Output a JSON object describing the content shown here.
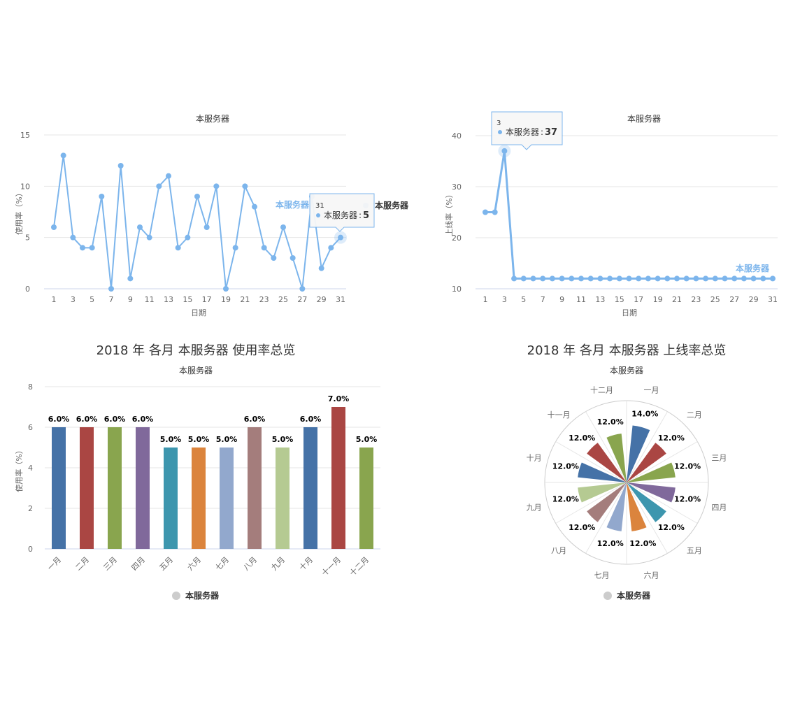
{
  "chart_data": [
    {
      "type": "line",
      "subtitle": "本服务器",
      "xlabel": "日期",
      "ylabel": "使用率（%）",
      "x": [
        1,
        2,
        3,
        4,
        5,
        6,
        7,
        8,
        9,
        10,
        11,
        12,
        13,
        14,
        15,
        16,
        17,
        18,
        19,
        20,
        21,
        22,
        23,
        24,
        25,
        26,
        27,
        28,
        29,
        30,
        31
      ],
      "x_ticks": [
        "1",
        "3",
        "5",
        "7",
        "9",
        "11",
        "13",
        "15",
        "17",
        "19",
        "21",
        "23",
        "25",
        "27",
        "29",
        "31"
      ],
      "ylim": [
        0,
        15
      ],
      "y_ticks": [
        "0",
        "5",
        "10",
        "15"
      ],
      "series": [
        {
          "name": "本服务器",
          "color": "#7cb5ec",
          "values": [
            6,
            13,
            5,
            4,
            4,
            9,
            0,
            12,
            1,
            6,
            5,
            10,
            11,
            4,
            5,
            9,
            6,
            10,
            0,
            4,
            10,
            8,
            4,
            3,
            6,
            3,
            0,
            9,
            2,
            4,
            5
          ]
        }
      ],
      "legend_label": "本服务器",
      "series_label": "本服务器",
      "tooltip": {
        "header": "31",
        "series": "本服务器",
        "value": "5"
      }
    },
    {
      "type": "line",
      "subtitle": "本服务器",
      "xlabel": "日期",
      "ylabel": "上线率（%）",
      "x": [
        1,
        2,
        3,
        4,
        5,
        6,
        7,
        8,
        9,
        10,
        11,
        12,
        13,
        14,
        15,
        16,
        17,
        18,
        19,
        20,
        21,
        22,
        23,
        24,
        25,
        26,
        27,
        28,
        29,
        30,
        31
      ],
      "x_ticks": [
        "1",
        "3",
        "5",
        "7",
        "9",
        "11",
        "13",
        "15",
        "17",
        "19",
        "21",
        "23",
        "25",
        "27",
        "29",
        "31"
      ],
      "ylim": [
        10,
        40
      ],
      "y_ticks": [
        "10",
        "20",
        "30",
        "40"
      ],
      "series": [
        {
          "name": "本服务器",
          "color": "#7cb5ec",
          "values": [
            25,
            25,
            37,
            12,
            12,
            12,
            12,
            12,
            12,
            12,
            12,
            12,
            12,
            12,
            12,
            12,
            12,
            12,
            12,
            12,
            12,
            12,
            12,
            12,
            12,
            12,
            12,
            12,
            12,
            12,
            12
          ]
        }
      ],
      "series_label": "本服务器",
      "tooltip": {
        "header": "3",
        "series": "本服务器",
        "value": "37"
      }
    },
    {
      "type": "bar",
      "title": "2018 年 各月 本服务器 使用率总览",
      "subtitle": "本服务器",
      "ylabel": "使用率（%）",
      "categories": [
        "一月",
        "二月",
        "三月",
        "四月",
        "五月",
        "六月",
        "七月",
        "八月",
        "九月",
        "十月",
        "十一月",
        "十二月"
      ],
      "values": [
        6,
        6,
        6,
        6,
        5,
        5,
        5,
        6,
        5,
        6,
        7,
        5
      ],
      "data_labels": [
        "6.0%",
        "6.0%",
        "6.0%",
        "6.0%",
        "5.0%",
        "5.0%",
        "5.0%",
        "6.0%",
        "5.0%",
        "6.0%",
        "7.0%",
        "5.0%"
      ],
      "colors": [
        "#4572a7",
        "#aa4643",
        "#89a54e",
        "#80699b",
        "#3d96ae",
        "#db843d",
        "#92a8cd",
        "#a47d7c",
        "#b5ca92",
        "#4572a7",
        "#aa4643",
        "#89a54e"
      ],
      "ylim": [
        0,
        8
      ],
      "y_ticks": [
        "0",
        "2",
        "4",
        "6",
        "8"
      ],
      "legend": "本服务器",
      "legend_placement": "bottom-center"
    },
    {
      "type": "polar-column",
      "title": "2018 年 各月 本服务器 上线率总览",
      "subtitle": "本服务器",
      "categories": [
        "一月",
        "二月",
        "三月",
        "四月",
        "五月",
        "六月",
        "七月",
        "八月",
        "九月",
        "十月",
        "十一月",
        "十二月"
      ],
      "values": [
        14,
        12,
        12,
        12,
        12,
        12,
        12,
        12,
        12,
        12,
        12,
        12
      ],
      "data_labels": [
        "14.0%",
        "12.0%",
        "12.0%",
        "12.0%",
        "12.0%",
        "12.0%",
        "12.0%",
        "12.0%",
        "12.0%",
        "12.0%",
        "12.0%",
        "12.0%"
      ],
      "colors": [
        "#4572a7",
        "#aa4643",
        "#89a54e",
        "#80699b",
        "#3d96ae",
        "#db843d",
        "#92a8cd",
        "#a47d7c",
        "#b5ca92",
        "#4572a7",
        "#aa4643",
        "#89a54e"
      ],
      "ylim": [
        0,
        20
      ],
      "legend": "本服务器",
      "legend_placement": "bottom-center"
    }
  ]
}
